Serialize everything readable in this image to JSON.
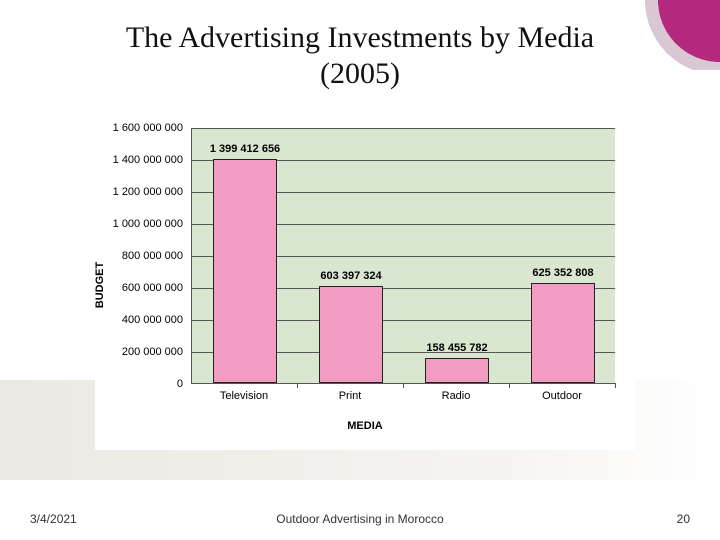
{
  "slide": {
    "title_line1": "The Advertising Investments by Media",
    "title_line2": "(2005)",
    "title_fontsize": 30,
    "title_fontfamily": "Times New Roman"
  },
  "chart": {
    "type": "bar",
    "ylabel": "BUDGET",
    "xlabel": "MEDIA",
    "plot_background": "#d9e7d0",
    "grid_color": "#555555",
    "bar_color": "#f29cc3",
    "bar_border": "#222222",
    "label_fontsize": 11,
    "tick_fontsize": 11,
    "ylim": [
      0,
      1600000000
    ],
    "ytick_step": 200000000,
    "yticks": [
      "0",
      "200 000 000",
      "400 000 000",
      "600 000 000",
      "800 000 000",
      "1 000 000 000",
      "1 200 000 000",
      "1 400 000 000",
      "1 600 000 000"
    ],
    "categories": [
      "Television",
      "Print",
      "Radio",
      "Outdoor"
    ],
    "values": [
      1399412656,
      603397324,
      158455782,
      625352808
    ],
    "value_labels": [
      "1 399 412 656",
      "603 397 324",
      "158 455 782",
      "625 352 808"
    ]
  },
  "footer": {
    "date": "3/4/2021",
    "center": "Outdoor Advertising in Morocco",
    "page": "20"
  },
  "accent": {
    "primary": "#b4297d",
    "secondary": "#d9c8d3"
  }
}
